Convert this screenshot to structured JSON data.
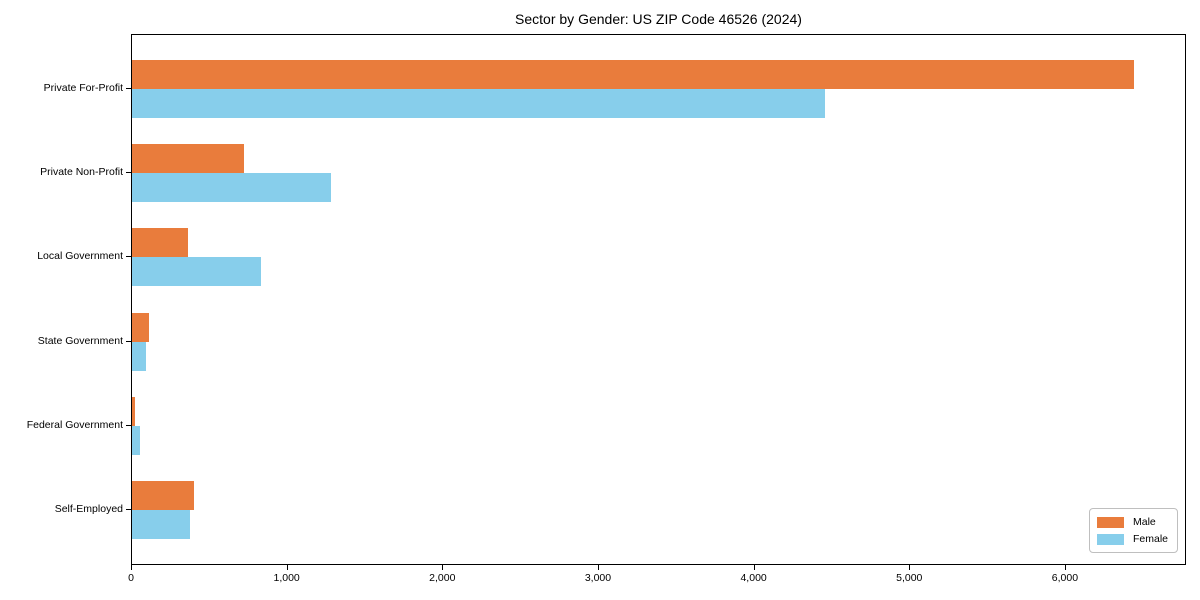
{
  "chart_data": {
    "type": "bar",
    "orientation": "horizontal",
    "title": "Sector by Gender: US ZIP Code 46526 (2024)",
    "categories": [
      "Private For-Profit",
      "Private Non-Profit",
      "Local Government",
      "State Government",
      "Federal Government",
      "Self-Employed"
    ],
    "series": [
      {
        "name": "Male",
        "color": "#e97c3c",
        "values": [
          6440,
          720,
          360,
          110,
          20,
          400
        ]
      },
      {
        "name": "Female",
        "color": "#87ceeb",
        "values": [
          4450,
          1280,
          830,
          90,
          50,
          370
        ]
      }
    ],
    "xlabel": "",
    "ylabel": "",
    "xlim": [
      0,
      6765
    ],
    "xtick_values": [
      0,
      1000,
      2000,
      3000,
      4000,
      5000,
      6000
    ],
    "xtick_labels": [
      "0",
      "1,000",
      "2,000",
      "3,000",
      "4,000",
      "5,000",
      "6,000"
    ],
    "legend_position": "lower right",
    "grid": false
  }
}
